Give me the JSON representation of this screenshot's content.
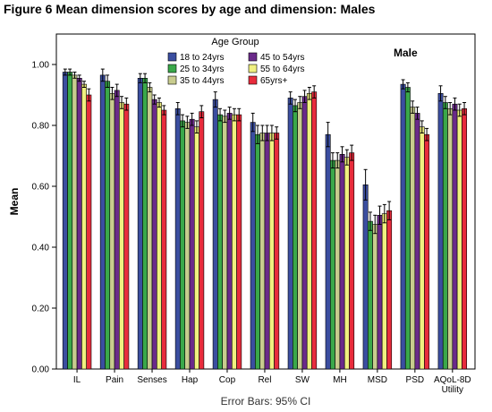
{
  "figure_title": "Figure 6 Mean dimension scores by age and dimension: Males",
  "chart_data": {
    "type": "bar",
    "panel_label": "Male",
    "ylabel": "Mean",
    "xlabel": "",
    "footnote": "Error Bars: 95% CI",
    "ylim": [
      0,
      1.1
    ],
    "yticks": [
      "0.00",
      "0.20",
      "0.40",
      "0.60",
      "0.80",
      "1.00"
    ],
    "grid": false,
    "legend": {
      "title": "Age Group",
      "placement": "top-center"
    },
    "categories": [
      "IL",
      "Pain",
      "Senses",
      "Hap",
      "Cop",
      "Rel",
      "SW",
      "MH",
      "MSD",
      "PSD",
      "AQoL-8D Utility"
    ],
    "series": [
      {
        "name": "18 to 24yrs",
        "color": "#3b4ea0",
        "values": [
          0.975,
          0.965,
          0.955,
          0.855,
          0.885,
          0.81,
          0.89,
          0.77,
          0.605,
          0.935,
          0.905
        ],
        "ci": [
          0.01,
          0.02,
          0.015,
          0.02,
          0.025,
          0.03,
          0.02,
          0.04,
          0.05,
          0.015,
          0.025
        ]
      },
      {
        "name": "25 to 34yrs",
        "color": "#3aa84a",
        "values": [
          0.975,
          0.945,
          0.955,
          0.815,
          0.835,
          0.77,
          0.865,
          0.685,
          0.485,
          0.925,
          0.875
        ],
        "ci": [
          0.01,
          0.02,
          0.015,
          0.02,
          0.02,
          0.03,
          0.02,
          0.025,
          0.03,
          0.015,
          0.02
        ]
      },
      {
        "name": "35 to 44yrs",
        "color": "#c8cc8e",
        "values": [
          0.965,
          0.905,
          0.925,
          0.81,
          0.83,
          0.775,
          0.875,
          0.685,
          0.475,
          0.86,
          0.855
        ],
        "ci": [
          0.01,
          0.02,
          0.015,
          0.02,
          0.02,
          0.025,
          0.02,
          0.025,
          0.03,
          0.02,
          0.02
        ]
      },
      {
        "name": "45 to 54yrs",
        "color": "#6a2a8a",
        "values": [
          0.955,
          0.915,
          0.885,
          0.82,
          0.84,
          0.775,
          0.895,
          0.705,
          0.505,
          0.84,
          0.87
        ],
        "ci": [
          0.01,
          0.02,
          0.015,
          0.02,
          0.02,
          0.025,
          0.02,
          0.025,
          0.03,
          0.02,
          0.02
        ]
      },
      {
        "name": "55 to 64yrs",
        "color": "#f0f080",
        "values": [
          0.935,
          0.875,
          0.875,
          0.795,
          0.835,
          0.775,
          0.905,
          0.695,
          0.51,
          0.795,
          0.85
        ],
        "ci": [
          0.01,
          0.02,
          0.015,
          0.02,
          0.02,
          0.025,
          0.02,
          0.025,
          0.03,
          0.02,
          0.02
        ]
      },
      {
        "name": "65yrs+",
        "color": "#e82c3c",
        "values": [
          0.9,
          0.87,
          0.85,
          0.845,
          0.835,
          0.775,
          0.91,
          0.71,
          0.52,
          0.77,
          0.855
        ],
        "ci": [
          0.02,
          0.02,
          0.015,
          0.02,
          0.02,
          0.02,
          0.02,
          0.025,
          0.03,
          0.02,
          0.02
        ]
      }
    ]
  }
}
